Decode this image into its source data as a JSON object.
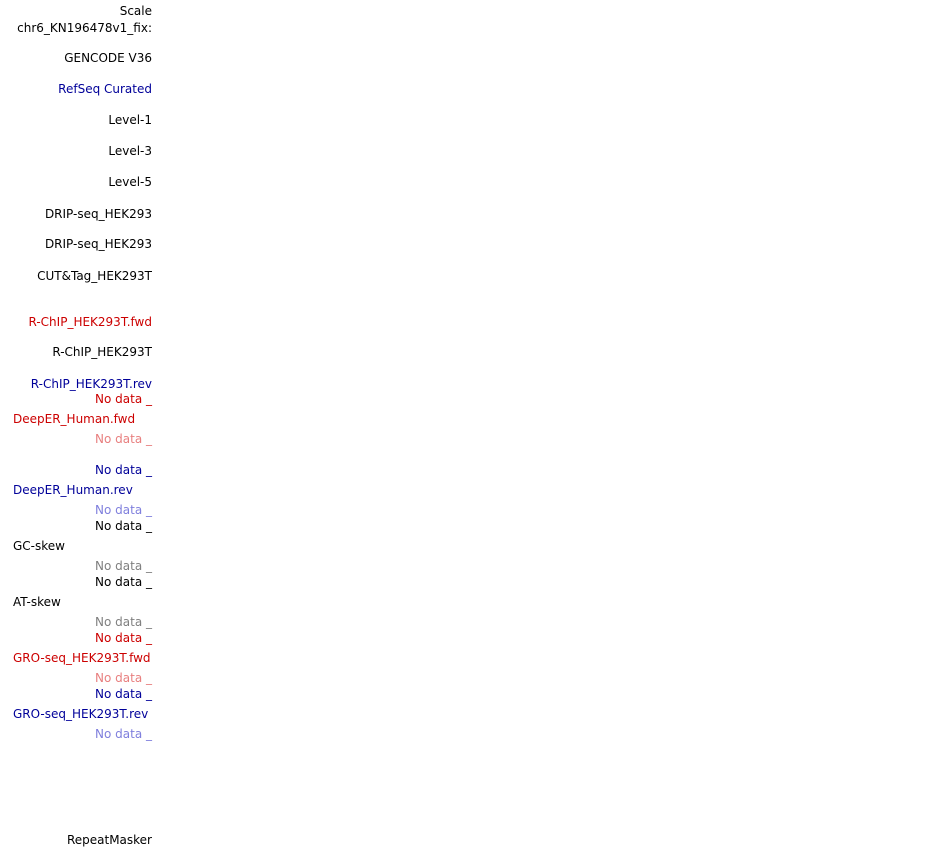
{
  "colors": {
    "black": "#000000",
    "red": "#cc0000",
    "light_red": "#e87f7f",
    "blue": "#000099",
    "light_blue": "#7f7fdd",
    "gray": "#7f7f7f"
  },
  "labels": {
    "scale": "Scale",
    "chrom": "chr6_KN196478v1_fix:",
    "gencode": "GENCODE V36",
    "refseq": "RefSeq Curated",
    "level1": "Level-1",
    "level3": "Level-3",
    "level5": "Level-5",
    "drip1": "DRIP-seq_HEK293",
    "drip2": "DRIP-seq_HEK293",
    "cuttag": "CUT&Tag_HEK293T",
    "rchip_fwd": "R-ChIP_HEK293T.fwd",
    "rchip": "R-ChIP_HEK293T",
    "rchip_rev": "R-ChIP_HEK293T.rev",
    "deeper_fwd": "DeepER_Human.fwd",
    "deeper_rev": "DeepER_Human.rev",
    "gc_skew": "GC-skew",
    "at_skew": "AT-skew",
    "gro_fwd": "GRO-seq_HEK293T.fwd",
    "gro_rev": "GRO-seq_HEK293T.rev",
    "repeatmasker": "RepeatMasker"
  },
  "no_data": "No data _"
}
